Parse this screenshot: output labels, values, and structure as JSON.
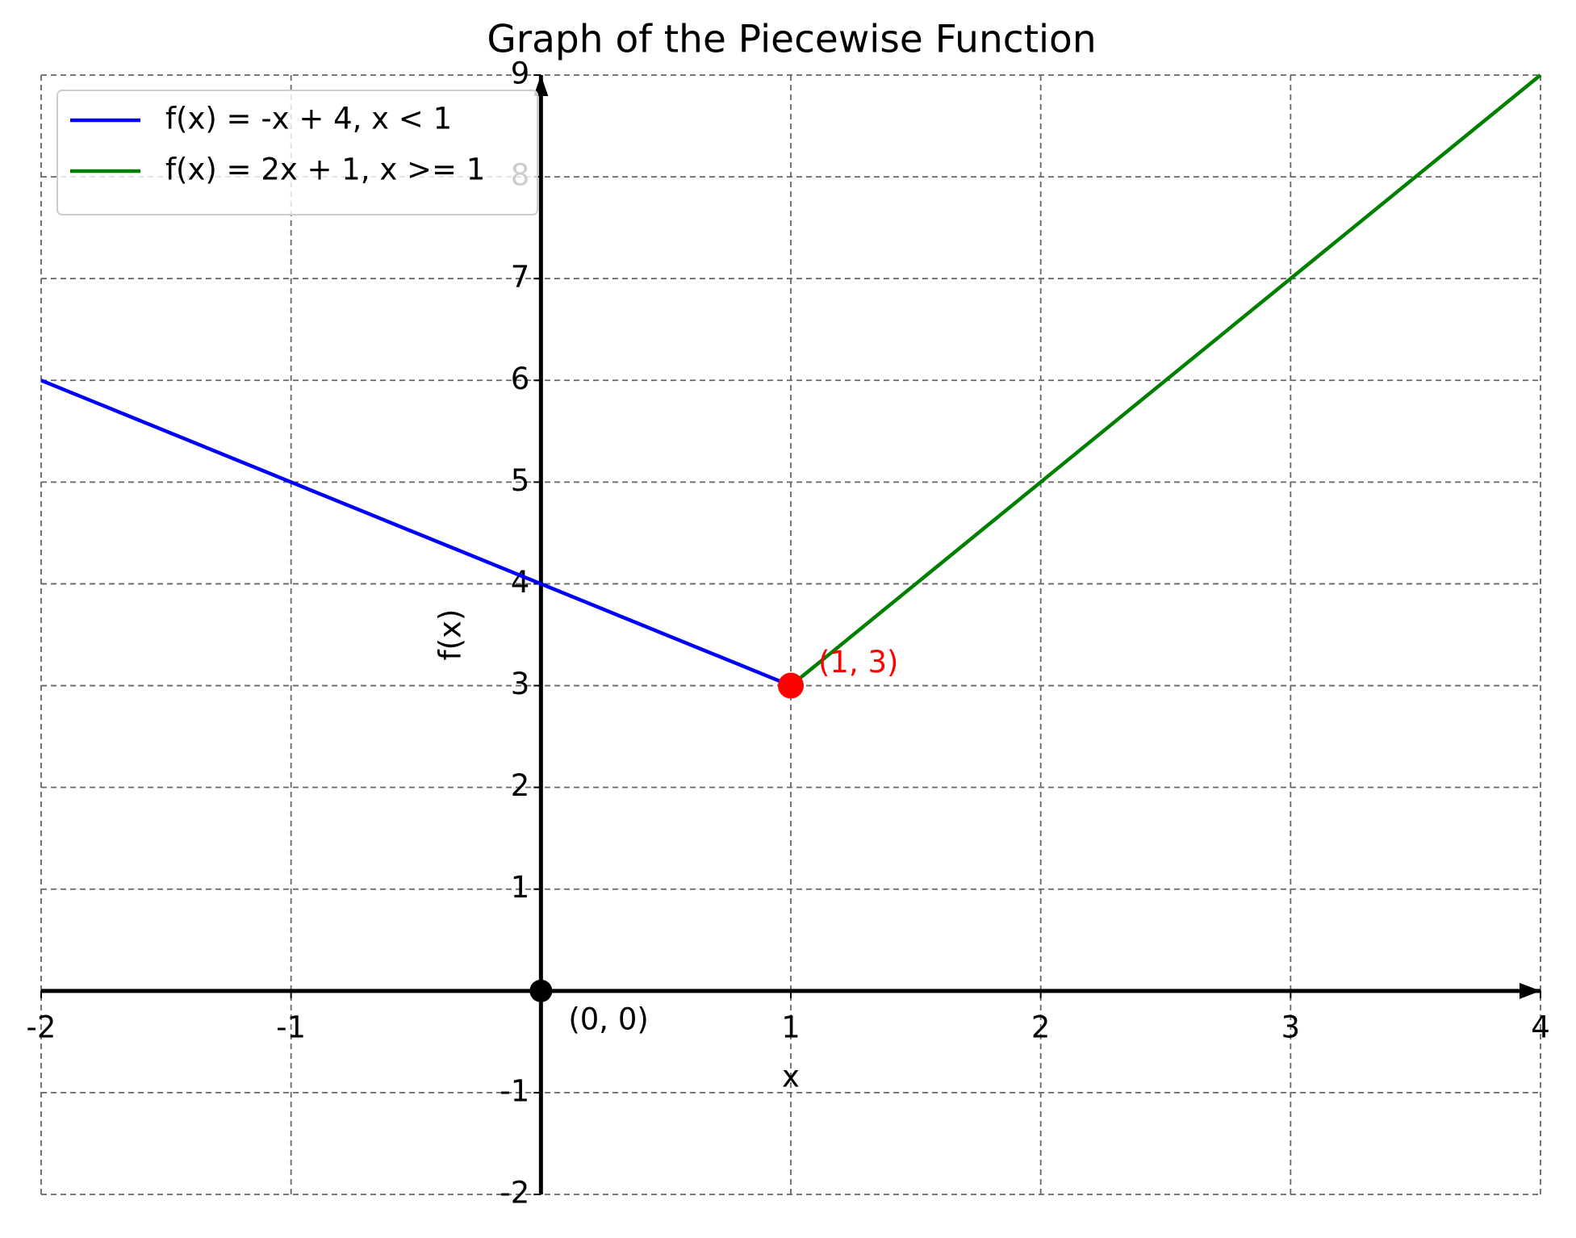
{
  "chart_data": {
    "type": "line",
    "title": "Graph of the Piecewise Function",
    "xlabel": "x",
    "ylabel": "f(x)",
    "series": [
      {
        "name": "f(x) = -x + 4, x < 1",
        "color": "blue",
        "x": [
          -2,
          1
        ],
        "values": [
          6,
          3
        ]
      },
      {
        "name": "f(x) = 2x + 1, x >= 1",
        "color": "green",
        "x": [
          1,
          4
        ],
        "values": [
          3,
          9
        ]
      }
    ],
    "points": [
      {
        "x": 1,
        "y": 3,
        "label": "(1, 3)",
        "color": "red"
      },
      {
        "x": 0,
        "y": 0,
        "label": "(0, 0)",
        "color": "black"
      }
    ],
    "xlim": [
      -2,
      4
    ],
    "ylim": [
      -2,
      9
    ],
    "xticks": [
      -2,
      -1,
      1,
      2,
      3,
      4
    ],
    "yticks": [
      -2,
      -1,
      1,
      2,
      3,
      4,
      5,
      6,
      7,
      8,
      9
    ],
    "grid": true,
    "legend": "upper left"
  }
}
